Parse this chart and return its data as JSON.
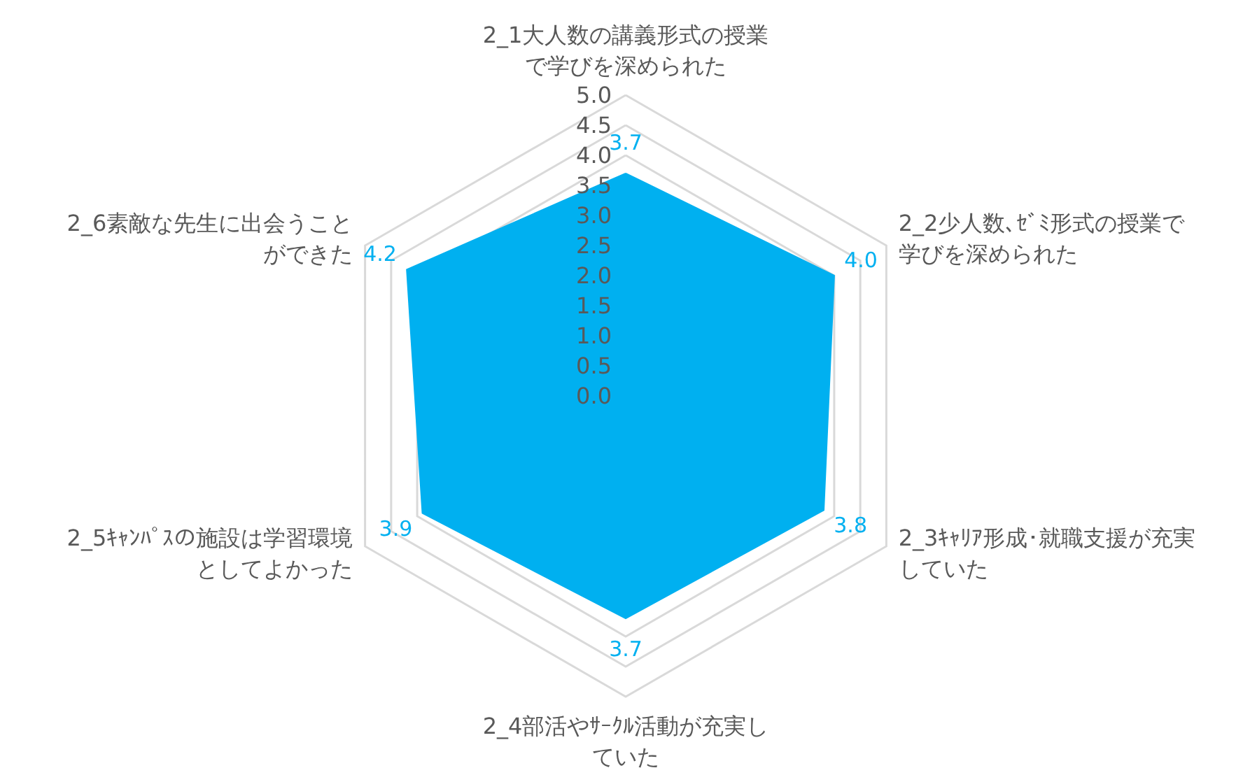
{
  "chart_data": {
    "type": "radar",
    "categories": [
      "2_1大人数の講義形式の授業で学びを深められた",
      "2_2少人数､ｾﾞﾐ形式の授業で学びを深められた",
      "2_3ｷｬﾘｱ形成･就職支援が充実していた",
      "2_4部活やｻｰｸﾙ活動が充実していた",
      "2_5ｷｬﾝﾊﾟｽの施設は学習環境としてよかった",
      "2_6素敵な先生に出会うことができた"
    ],
    "series": [
      {
        "color": "#00b0f0",
        "values": [
          3.7,
          4.0,
          3.8,
          3.7,
          3.9,
          4.2
        ],
        "value_labels": [
          "3.7",
          "4.0",
          "3.8",
          "3.7",
          "3.9",
          "4.2"
        ]
      }
    ],
    "ylim": [
      0,
      5
    ],
    "yticks": [
      {
        "value": 0,
        "label": "0.0"
      },
      {
        "value": 0.5,
        "label": "0.5"
      },
      {
        "value": 1,
        "label": "1.0"
      },
      {
        "value": 1.5,
        "label": "1.5"
      },
      {
        "value": 2,
        "label": "2.0"
      },
      {
        "value": 2.5,
        "label": "2.5"
      },
      {
        "value": 3,
        "label": "3.0"
      },
      {
        "value": 3.5,
        "label": "3.5"
      },
      {
        "value": 4,
        "label": "4.0"
      },
      {
        "value": 4.5,
        "label": "4.5"
      },
      {
        "value": 5,
        "label": "5.0"
      }
    ],
    "grid": true,
    "marker": "none"
  }
}
